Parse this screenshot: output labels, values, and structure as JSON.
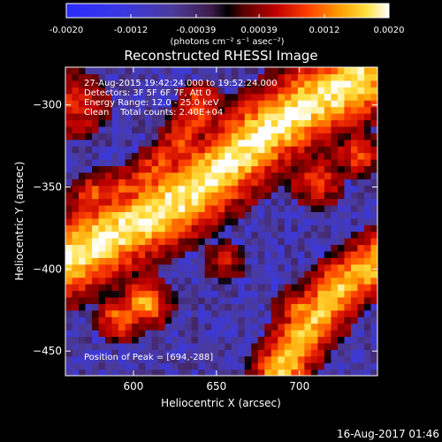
{
  "chart_data": {
    "type": "heatmap",
    "title": "Reconstructed RHESSI Image",
    "xlabel": "Heliocentric X (arcsec)",
    "ylabel": "Heliocentric Y (arcsec)",
    "xlim": [
      559,
      747
    ],
    "ylim": [
      -465,
      -277
    ],
    "x_ticks": [
      600,
      650,
      700
    ],
    "y_ticks": [
      -300,
      -350,
      -400,
      -450
    ],
    "colorbar": {
      "range": [
        -0.002,
        0.002
      ],
      "tick_values": [
        -0.002,
        -0.0012,
        -0.00039,
        0.00039,
        0.0012,
        0.002
      ],
      "tick_labels": [
        "-0.0020",
        "-0.0012",
        "-0.00039",
        "0.00039",
        "0.0012",
        "0.0020"
      ],
      "unit_label": "(photons cm⁻² s⁻¹ asec⁻²)"
    },
    "annotations": [
      "27-Aug-2015 19:42:24.000 to 19:52:24.000",
      "Detectors: 3F 5F 6F 7F, Att 0",
      "Energy Range: 12.0 - 25.0 keV",
      "Clean    Total counts: 2.40E+04"
    ],
    "peak_label": "Position of Peak = [694,-288]",
    "peak": [
      694,
      -288
    ],
    "grid": false,
    "features": [
      {
        "kind": "ridge",
        "points": [
          [
            735,
            -285
          ],
          [
            705,
            -300
          ],
          [
            675,
            -320
          ],
          [
            645,
            -345
          ],
          [
            615,
            -365
          ],
          [
            575,
            -385
          ],
          [
            559,
            -395
          ]
        ],
        "width": 14,
        "intensity": 0.95
      },
      {
        "kind": "ridge",
        "points": [
          [
            747,
            -395
          ],
          [
            725,
            -410
          ],
          [
            705,
            -435
          ],
          [
            688,
            -462
          ]
        ],
        "width": 10,
        "intensity": 0.8
      },
      {
        "kind": "ridge",
        "points": [
          [
            640,
            -300
          ],
          [
            625,
            -330
          ],
          [
            600,
            -350
          ],
          [
            575,
            -355
          ]
        ],
        "width": 8,
        "intensity": 0.5
      },
      {
        "kind": "blob",
        "center": [
          607,
          -420
        ],
        "radius": 9,
        "intensity": 0.75
      },
      {
        "kind": "blob",
        "center": [
          592,
          -430
        ],
        "radius": 8,
        "intensity": 0.6
      },
      {
        "kind": "blob",
        "center": [
          710,
          -345
        ],
        "radius": 10,
        "intensity": 0.45
      },
      {
        "kind": "blob",
        "center": [
          565,
          -300
        ],
        "radius": 12,
        "intensity": 0.4
      },
      {
        "kind": "blob",
        "center": [
          735,
          -330
        ],
        "radius": 8,
        "intensity": 0.5
      },
      {
        "kind": "blob",
        "center": [
          700,
          -425
        ],
        "radius": 8,
        "intensity": 0.65
      },
      {
        "kind": "blob",
        "center": [
          655,
          -395
        ],
        "radius": 8,
        "intensity": 0.3
      }
    ]
  },
  "timestamp": "16-Aug-2017 01:46"
}
